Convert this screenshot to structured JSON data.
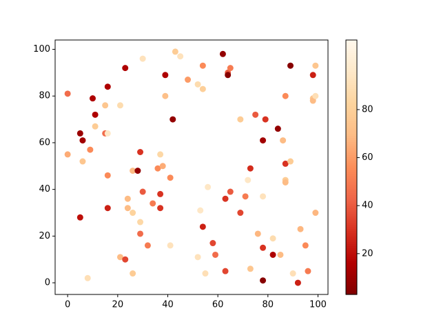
{
  "chart_data": {
    "type": "scatter",
    "x": [
      0,
      0,
      5,
      6,
      5,
      6,
      8,
      9,
      10,
      11,
      11,
      15,
      15,
      16,
      16,
      16,
      16,
      21,
      21,
      23,
      23,
      24,
      24,
      26,
      26,
      26,
      28,
      29,
      29,
      29,
      30,
      30,
      32,
      34,
      36,
      37,
      37,
      37,
      38,
      39,
      39,
      41,
      41,
      42,
      43,
      45,
      48,
      52,
      52,
      53,
      54,
      54,
      54,
      55,
      56,
      58,
      59,
      62,
      63,
      63,
      64,
      64,
      65,
      65,
      69,
      69,
      71,
      72,
      73,
      73,
      75,
      76,
      78,
      78,
      78,
      78,
      79,
      82,
      82,
      84,
      85,
      86,
      87,
      87,
      87,
      87,
      89,
      89,
      90,
      92,
      93,
      95,
      96,
      98,
      98,
      98,
      99,
      99,
      99
    ],
    "values": [
      81,
      55,
      64,
      61,
      28,
      52,
      2,
      57,
      79,
      72,
      67,
      76,
      64,
      64,
      84,
      46,
      32,
      11,
      76,
      92,
      10,
      36,
      32,
      48,
      30,
      4,
      48,
      56,
      26,
      21,
      96,
      39,
      16,
      34,
      49,
      55,
      38,
      32,
      50,
      89,
      80,
      45,
      16,
      70,
      99,
      97,
      87,
      85,
      11,
      31,
      93,
      83,
      24,
      4,
      41,
      17,
      12,
      98,
      36,
      5,
      90,
      89,
      92,
      39,
      70,
      30,
      37,
      44,
      49,
      6,
      72,
      21,
      61,
      37,
      15,
      1,
      70,
      19,
      12,
      66,
      12,
      61,
      80,
      51,
      44,
      43,
      93,
      52,
      4,
      0,
      23,
      16,
      5,
      89,
      79,
      78,
      93,
      80,
      30
    ],
    "color_values": [
      45,
      65,
      10,
      12,
      20,
      75,
      90,
      55,
      15,
      15,
      78,
      75,
      45,
      95,
      15,
      55,
      25,
      70,
      88,
      15,
      35,
      70,
      70,
      70,
      82,
      78,
      8,
      30,
      85,
      45,
      92,
      40,
      50,
      50,
      55,
      85,
      30,
      30,
      65,
      15,
      72,
      55,
      92,
      8,
      78,
      92,
      60,
      88,
      92,
      95,
      55,
      80,
      25,
      90,
      95,
      35,
      45,
      8,
      30,
      35,
      40,
      5,
      50,
      40,
      78,
      35,
      50,
      95,
      28,
      75,
      40,
      68,
      12,
      92,
      30,
      5,
      30,
      88,
      15,
      8,
      70,
      70,
      55,
      30,
      78,
      70,
      5,
      78,
      90,
      25,
      68,
      55,
      50,
      25,
      75,
      70,
      75,
      90,
      68
    ],
    "colormap": "OrRd_r",
    "xlim": [
      -5,
      104
    ],
    "ylim": [
      -5,
      104
    ],
    "xticks": [
      0,
      20,
      40,
      60,
      80,
      100
    ],
    "yticks": [
      0,
      20,
      40,
      60,
      80,
      100
    ],
    "clim": [
      3,
      109
    ],
    "cticks": [
      20,
      40,
      60,
      80
    ]
  }
}
